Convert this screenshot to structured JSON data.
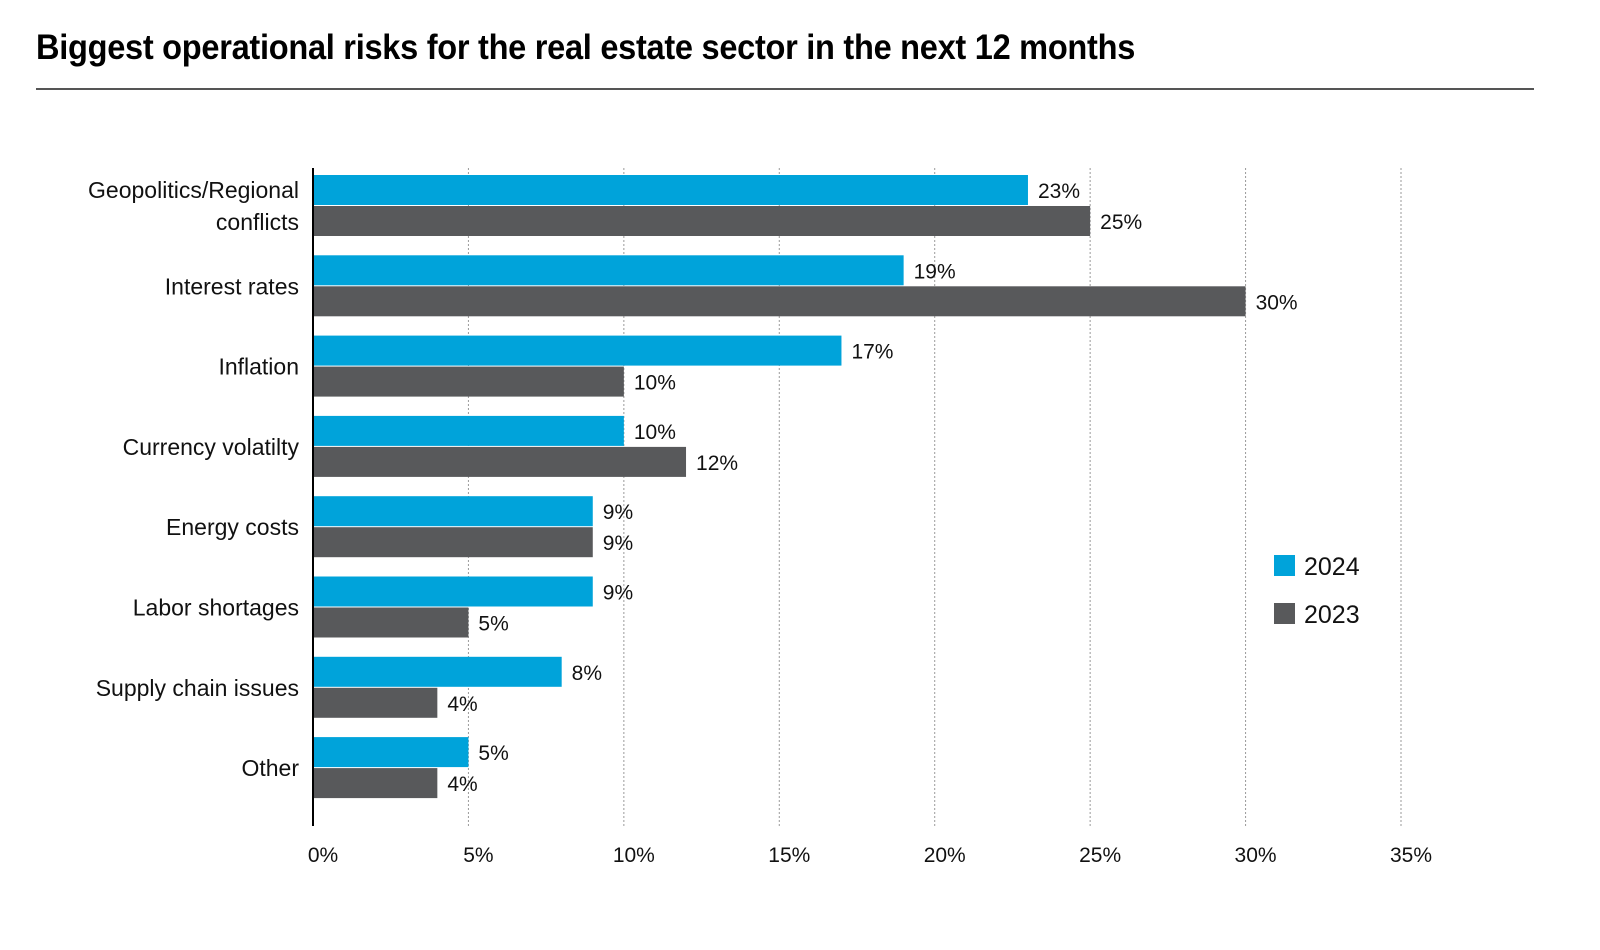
{
  "chart_data": {
    "type": "bar",
    "orientation": "horizontal",
    "title": "Biggest operational risks for the real estate sector in the next 12 months",
    "xlabel": "",
    "ylabel": "",
    "categories": [
      [
        "Geopolitics/Regional",
        "conflicts"
      ],
      [
        "Interest rates"
      ],
      [
        "Inflation"
      ],
      [
        "Currency volatilty"
      ],
      [
        "Energy costs"
      ],
      [
        "Labor shortages"
      ],
      [
        "Supply chain issues"
      ],
      [
        "Other"
      ]
    ],
    "series": [
      {
        "name": "2024",
        "color": "#00a3da",
        "values": [
          23,
          19,
          17,
          10,
          9,
          9,
          8,
          5
        ]
      },
      {
        "name": "2023",
        "color": "#58595b",
        "values": [
          25,
          30,
          10,
          12,
          9,
          5,
          4,
          4
        ]
      }
    ],
    "xlim": [
      0,
      35
    ],
    "xticks": [
      0,
      5,
      10,
      15,
      20,
      25,
      30,
      35
    ],
    "tick_suffix": "%",
    "value_suffix": "%",
    "grid": true,
    "legend_position": "right"
  }
}
